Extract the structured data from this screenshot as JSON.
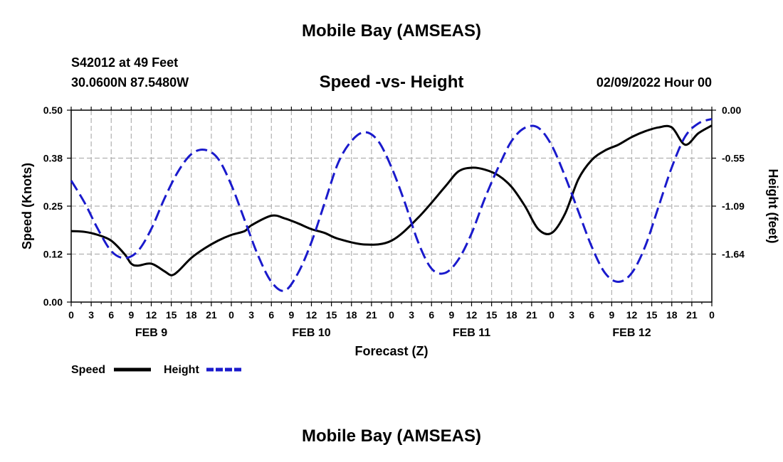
{
  "header": {
    "title": "Mobile Bay (AMSEAS)",
    "station": "S42012 at 49 Feet",
    "coords": "30.0600N  87.5480W",
    "chart_title": "Speed -vs- Height",
    "date": "02/09/2022 Hour 00"
  },
  "footer": {
    "title": "Mobile Bay (AMSEAS)"
  },
  "colors": {
    "speed": "#000000",
    "height": "#1a1acc",
    "grid": "#b0b0b0"
  },
  "chart_data": {
    "type": "line",
    "title": "Speed -vs- Height",
    "xlabel": "Forecast (Z)",
    "ylabel": "Speed (Knots)",
    "ylabel_right": "Height (feet)",
    "xlim": [
      0,
      96
    ],
    "ylim": [
      0,
      0.5
    ],
    "ylim_right": [
      -2.18,
      0.0
    ],
    "x_tick_labels": [
      "0",
      "3",
      "6",
      "9",
      "12",
      "15",
      "18",
      "21",
      "0",
      "3",
      "6",
      "9",
      "12",
      "15",
      "18",
      "21",
      "0",
      "3",
      "6",
      "9",
      "12",
      "15",
      "18",
      "21",
      "0",
      "3",
      "6",
      "9",
      "12",
      "15",
      "18",
      "21",
      "0"
    ],
    "y_tick_labels": [
      "0.00",
      "0.12",
      "0.25",
      "0.38",
      "0.50"
    ],
    "y_right_tick_labels": [
      "0.00",
      "-0.55",
      "-1.09",
      "-1.64"
    ],
    "day_labels": [
      {
        "label": "FEB 9",
        "hour": 12
      },
      {
        "label": "FEB 10",
        "hour": 36
      },
      {
        "label": "FEB 11",
        "hour": 60
      },
      {
        "label": "FEB 12",
        "hour": 84
      }
    ],
    "grid": true,
    "legend": {
      "position": "bottom-left",
      "entries": [
        "Speed",
        "Height"
      ]
    },
    "series": [
      {
        "name": "Speed",
        "axis": "left",
        "style": "solid",
        "x": [
          0,
          2,
          4,
          6,
          8,
          9,
          10,
          12,
          14,
          15,
          16,
          18,
          20,
          22,
          24,
          26,
          27,
          30,
          32,
          34,
          36,
          38,
          40,
          44,
          48,
          52,
          56,
          58,
          60,
          62,
          64,
          66,
          68,
          70,
          72,
          74,
          76,
          78,
          80,
          82,
          84,
          86,
          88,
          90,
          92,
          94,
          96
        ],
        "y": [
          0.185,
          0.183,
          0.175,
          0.16,
          0.125,
          0.1,
          0.095,
          0.1,
          0.08,
          0.07,
          0.08,
          0.115,
          0.14,
          0.16,
          0.175,
          0.185,
          0.2,
          0.225,
          0.218,
          0.205,
          0.19,
          0.18,
          0.165,
          0.15,
          0.16,
          0.22,
          0.3,
          0.34,
          0.35,
          0.345,
          0.33,
          0.3,
          0.25,
          0.19,
          0.18,
          0.23,
          0.32,
          0.37,
          0.395,
          0.41,
          0.43,
          0.445,
          0.455,
          0.455,
          0.41,
          0.44,
          0.46
        ]
      },
      {
        "name": "Height",
        "axis": "right",
        "style": "dashed",
        "x": [
          0,
          2,
          4,
          6,
          8,
          10,
          12,
          14,
          16,
          18,
          20,
          22,
          24,
          26,
          28,
          30,
          32,
          34,
          36,
          38,
          40,
          42,
          44,
          46,
          48,
          50,
          52,
          54,
          56,
          58,
          60,
          62,
          64,
          66,
          68,
          70,
          72,
          74,
          76,
          78,
          80,
          82,
          84,
          86,
          88,
          90,
          92,
          94,
          96
        ],
        "y": [
          -0.8,
          -1.05,
          -1.35,
          -1.6,
          -1.68,
          -1.6,
          -1.35,
          -1.0,
          -0.7,
          -0.5,
          -0.45,
          -0.55,
          -0.85,
          -1.25,
          -1.65,
          -1.95,
          -2.05,
          -1.85,
          -1.5,
          -1.05,
          -0.6,
          -0.35,
          -0.25,
          -0.35,
          -0.65,
          -1.05,
          -1.5,
          -1.8,
          -1.85,
          -1.7,
          -1.4,
          -1.0,
          -0.65,
          -0.35,
          -0.2,
          -0.2,
          -0.4,
          -0.75,
          -1.15,
          -1.55,
          -1.85,
          -1.95,
          -1.85,
          -1.55,
          -1.1,
          -0.65,
          -0.3,
          -0.15,
          -0.1
        ]
      }
    ]
  }
}
